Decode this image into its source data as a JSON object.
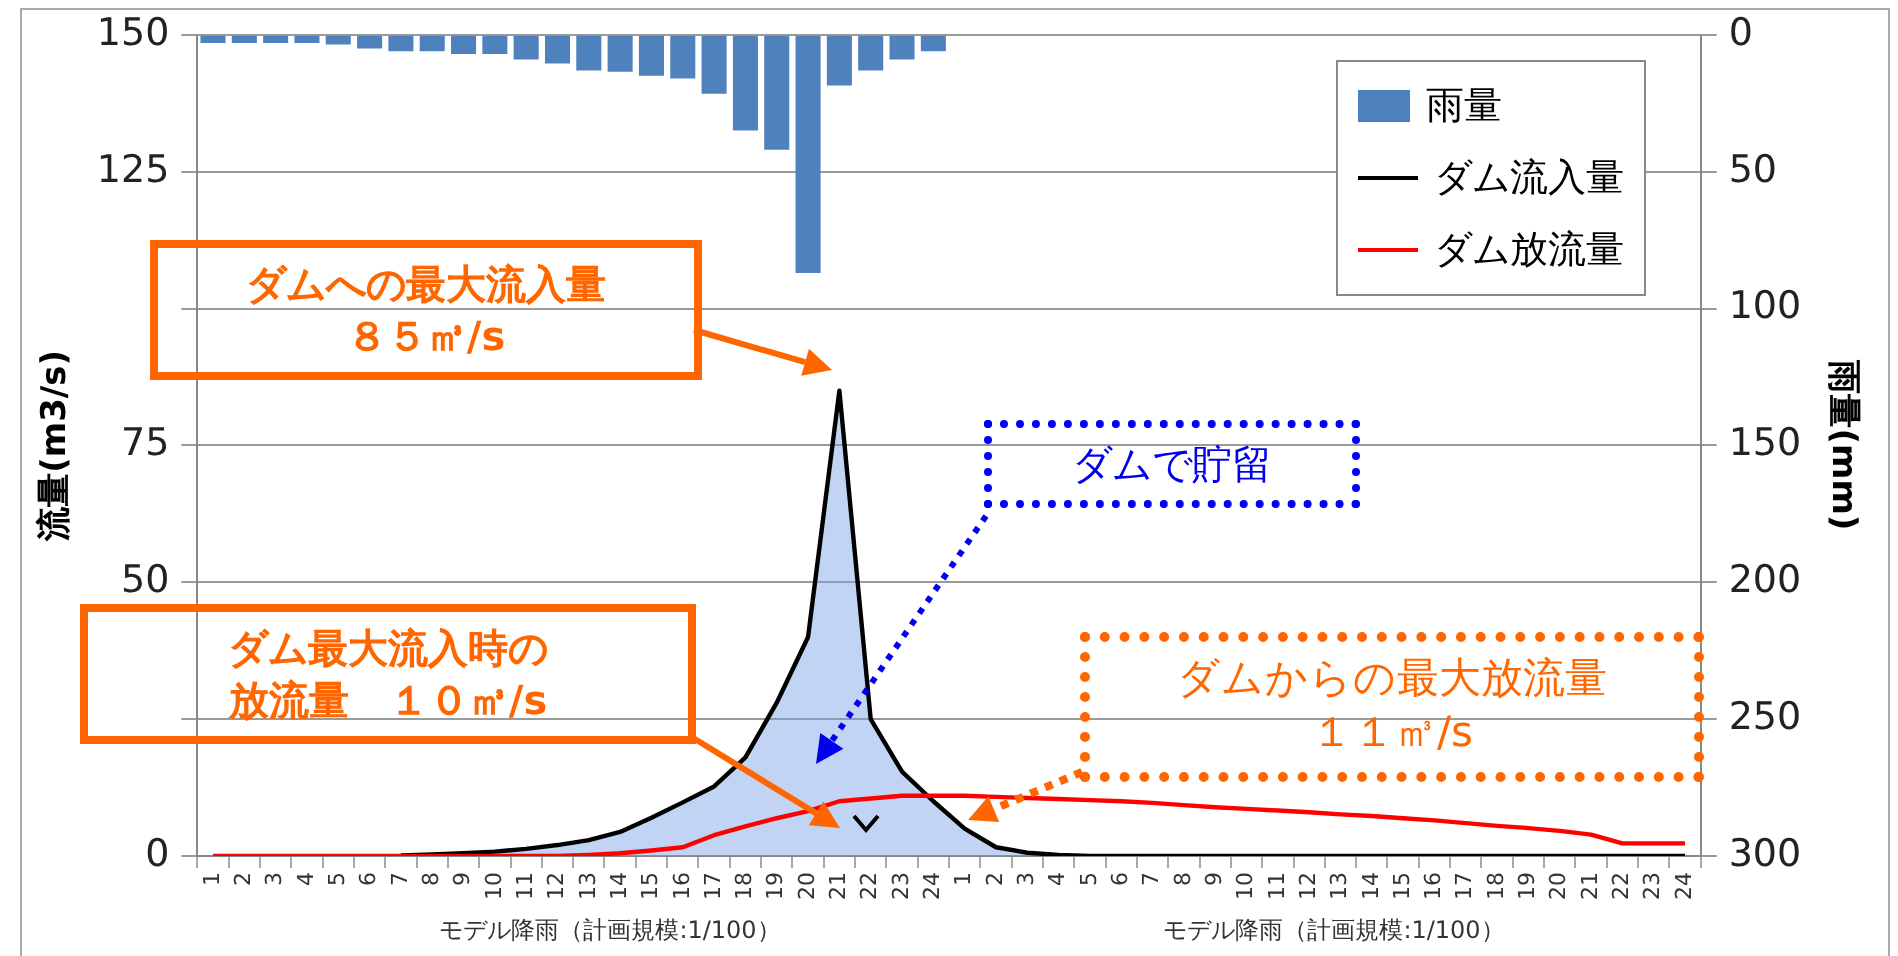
{
  "chart_data": {
    "type": "line",
    "ylabel": "流量(m3/s)",
    "y2label": "雨量(mm)",
    "categories": [
      "1",
      "2",
      "3",
      "4",
      "5",
      "6",
      "7",
      "8",
      "9",
      "10",
      "11",
      "12",
      "13",
      "14",
      "15",
      "16",
      "17",
      "18",
      "19",
      "20",
      "21",
      "22",
      "23",
      "24",
      "1",
      "2",
      "3",
      "4",
      "5",
      "6",
      "7",
      "8",
      "9",
      "10",
      "11",
      "12",
      "13",
      "14",
      "15",
      "16",
      "17",
      "18",
      "19",
      "20",
      "21",
      "22",
      "23",
      "24"
    ],
    "series": [
      {
        "name": "雨量",
        "type": "bar",
        "axis": "y2",
        "color": "#4f81bd",
        "values": [
          3,
          3,
          3,
          3,
          3.5,
          5,
          6,
          6,
          7,
          7,
          9,
          10.5,
          13,
          13.5,
          15,
          16,
          21.5,
          35,
          42,
          87,
          18.5,
          13,
          9,
          6,
          null,
          null,
          null,
          null,
          null,
          null,
          null,
          null,
          null,
          null,
          null,
          null,
          null,
          null,
          null,
          null,
          null,
          null,
          null,
          null,
          null,
          null,
          null,
          null
        ]
      },
      {
        "name": "ダム流入量",
        "type": "area",
        "color": "#000000",
        "values": [
          null,
          null,
          null,
          null,
          null,
          null,
          0.1,
          0.3,
          0.5,
          0.8,
          1.3,
          2,
          2.9,
          4.4,
          7,
          9.8,
          12.7,
          18,
          28,
          40,
          85,
          25,
          15.4,
          10,
          5,
          1.6,
          0.6,
          0.2,
          0,
          0,
          0,
          0,
          0,
          0,
          0,
          0,
          0,
          0,
          0,
          0,
          0,
          0,
          0,
          0,
          0,
          0,
          0,
          0
        ]
      },
      {
        "name": "ダム放流量",
        "color": "#ff0000",
        "values": [
          0,
          0,
          0,
          0,
          0,
          0,
          0,
          0,
          0,
          0,
          0,
          0,
          0.2,
          0.5,
          1,
          1.6,
          3.8,
          5.4,
          6.9,
          8.2,
          10,
          10.5,
          11,
          11,
          11,
          10.8,
          10.6,
          10.4,
          10.2,
          10,
          9.7,
          9.3,
          8.9,
          8.6,
          8.3,
          8,
          7.6,
          7.3,
          6.9,
          6.5,
          6,
          5.5,
          5.1,
          4.6,
          3.9,
          2.3,
          2.3,
          2.3
        ]
      }
    ],
    "ylim": [
      0,
      150
    ],
    "yticks": [
      0,
      {
        "value": 25,
        "label": null
      },
      50,
      75,
      {
        "value": 100,
        "label": null
      },
      125,
      150
    ],
    "y2lim": [
      300,
      0
    ],
    "y2ticks": [
      0,
      50,
      100,
      150,
      200,
      250,
      300
    ],
    "grid": "y",
    "legend": "top right",
    "marker": "none",
    "line_style": "solid",
    "annotations": [
      "ダムへの最大流入量８５㎥/s",
      "ダムで貯留",
      "ダム最大流入時の放流量　１０㎥/s",
      "ダムからの最大放流量１１㎥/s",
      "モデル降雨（計画規模:1/100）",
      "モデル降雨（計画規模:1/100）"
    ]
  }
}
